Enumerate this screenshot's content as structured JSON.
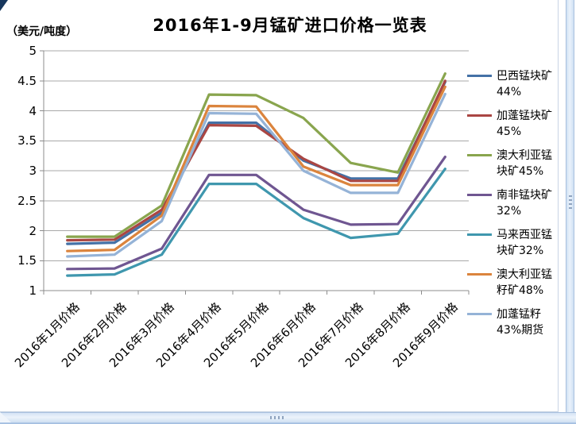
{
  "chart_data": {
    "type": "line",
    "title": "2016年1-9月锰矿进口价格一览表",
    "unit_label": "（美元/吨度）",
    "categories": [
      "2016年1月价格",
      "2016年2月价格",
      "2016年3月价格",
      "2016年4月价格",
      "2016年5月价格",
      "2016年6月价格",
      "2016年7月价格",
      "2016年8月价格",
      "2016年9月价格"
    ],
    "ylim": [
      1,
      5
    ],
    "ytick_step": 0.5,
    "ytick_labels": [
      "5",
      "4.5",
      "4",
      "3.5",
      "3",
      "2.5",
      "2",
      "1.5",
      "1"
    ],
    "grid": "horizontal-major-gridlines",
    "legend_position": "right",
    "axis_color": "#8C8C8C",
    "gridline_color": "#A8A8A8",
    "series": [
      {
        "id": "brazil-lump-44",
        "name": "巴西锰块矿44%",
        "label_lines": [
          "巴西锰块矿",
          "44%"
        ],
        "color": "#4471A6",
        "values": [
          1.78,
          1.8,
          2.3,
          3.8,
          3.8,
          3.17,
          2.87,
          2.87,
          4.48
        ]
      },
      {
        "id": "gabon-lump-45",
        "name": "加蓬锰块矿45%",
        "label_lines": [
          "加蓬锰块矿",
          "45%"
        ],
        "color": "#AA4643",
        "values": [
          1.84,
          1.85,
          2.35,
          3.76,
          3.75,
          3.2,
          2.83,
          2.83,
          4.5
        ]
      },
      {
        "id": "australia-lump-45",
        "name": "澳大利亚锰块矿45%",
        "label_lines": [
          "澳大利亚锰",
          "块矿45%"
        ],
        "color": "#89A54E",
        "values": [
          1.9,
          1.9,
          2.42,
          4.27,
          4.26,
          3.88,
          3.13,
          2.97,
          4.62
        ]
      },
      {
        "id": "south-africa-lump-32",
        "name": "南非锰块矿32%",
        "label_lines": [
          "南非锰块矿",
          "32%"
        ],
        "color": "#6F5691",
        "values": [
          1.36,
          1.37,
          1.7,
          2.93,
          2.93,
          2.35,
          2.1,
          2.11,
          3.23
        ]
      },
      {
        "id": "malaysia-lump-32",
        "name": "马来西亚锰块矿32%",
        "label_lines": [
          "马来西亚锰",
          "块矿32%"
        ],
        "color": "#3F97AE",
        "values": [
          1.25,
          1.27,
          1.6,
          2.78,
          2.78,
          2.21,
          1.88,
          1.95,
          3.03
        ]
      },
      {
        "id": "australia-fines-48",
        "name": "澳大利亚锰籽矿48%",
        "label_lines": [
          "澳大利亚锰",
          "籽矿48%"
        ],
        "color": "#DB843D",
        "values": [
          1.66,
          1.68,
          2.25,
          4.08,
          4.07,
          3.07,
          2.76,
          2.76,
          4.4
        ]
      },
      {
        "id": "gabon-fines-43-futures",
        "name": "加蓬锰籽43%期货",
        "label_lines": [
          "加蓬锰籽",
          "43%期货"
        ],
        "color": "#95B3D7",
        "values": [
          1.57,
          1.6,
          2.16,
          3.96,
          3.95,
          3.0,
          2.63,
          2.63,
          4.28
        ]
      }
    ]
  },
  "icons": {
    "selection_corner": "corner-triangle",
    "vertical_scroll_handle": "grip-dots-vertical",
    "horizontal_scroll_handle": "grip-dots-horizontal"
  }
}
